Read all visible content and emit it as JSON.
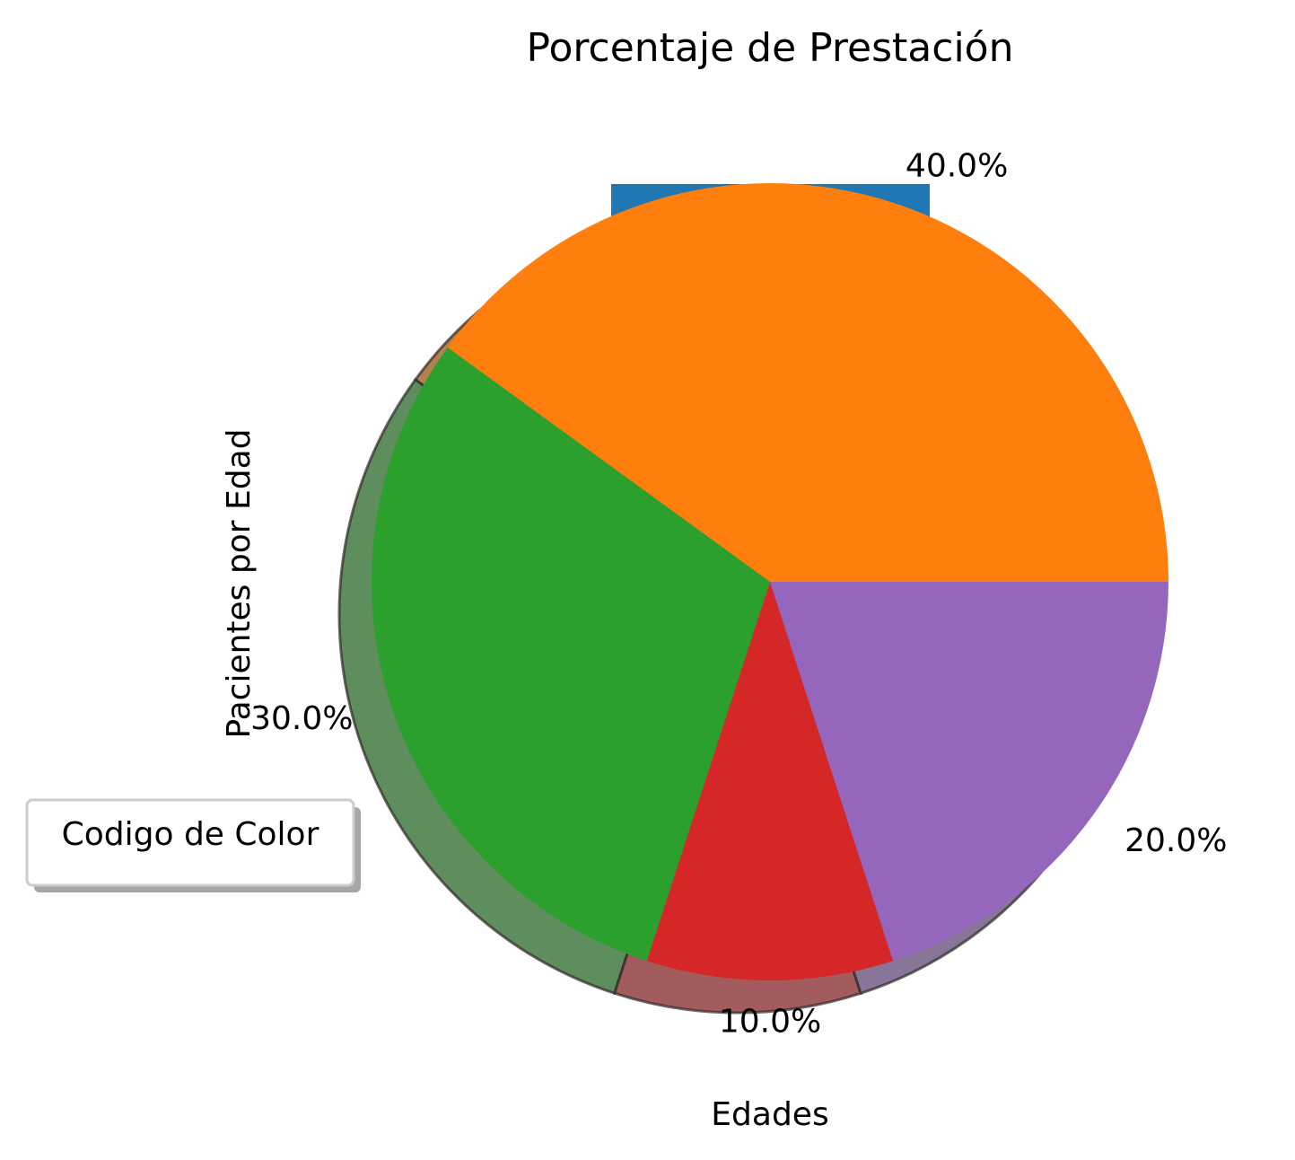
{
  "chart_data": {
    "type": "pie",
    "title": "Porcentaje de Prestación",
    "xlabel": "Edades",
    "ylabel": "Pacientes por Edad",
    "legend_title": "Codigo de Color",
    "legend_placement": "center-left",
    "shadow": true,
    "slices": [
      {
        "value": 40.0,
        "label": "40.0%",
        "color": "#ff7f0e"
      },
      {
        "value": 30.0,
        "label": "30.0%",
        "color": "#2ca02c"
      },
      {
        "value": 10.0,
        "label": "10.0%",
        "color": "#d62728"
      },
      {
        "value": 20.0,
        "label": "20.0%",
        "color": "#9467bd"
      }
    ],
    "extra_color": "#1f77b4"
  }
}
